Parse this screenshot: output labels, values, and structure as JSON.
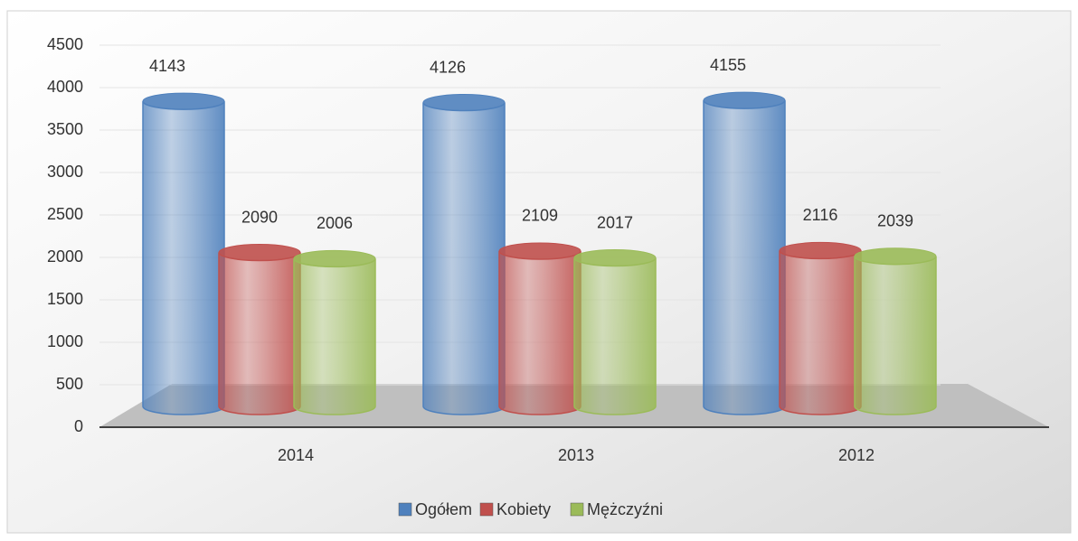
{
  "chart_data": {
    "type": "bar",
    "categories": [
      "2014",
      "2013",
      "2012"
    ],
    "series": [
      {
        "name": "Ogółem",
        "color": "#4f81bd",
        "values": [
          4143,
          4126,
          4155
        ]
      },
      {
        "name": "Kobiety",
        "color": "#c0504d",
        "values": [
          2090,
          2109,
          2116
        ]
      },
      {
        "name": "Mężczyźni",
        "color": "#9bbb59",
        "values": [
          2006,
          2017,
          2039
        ]
      }
    ],
    "ylim": [
      0,
      4500
    ],
    "yticks": [
      0,
      500,
      1000,
      1500,
      2000,
      2500,
      3000,
      3500,
      4000,
      4500
    ],
    "grid": true,
    "legend": "bottom"
  }
}
